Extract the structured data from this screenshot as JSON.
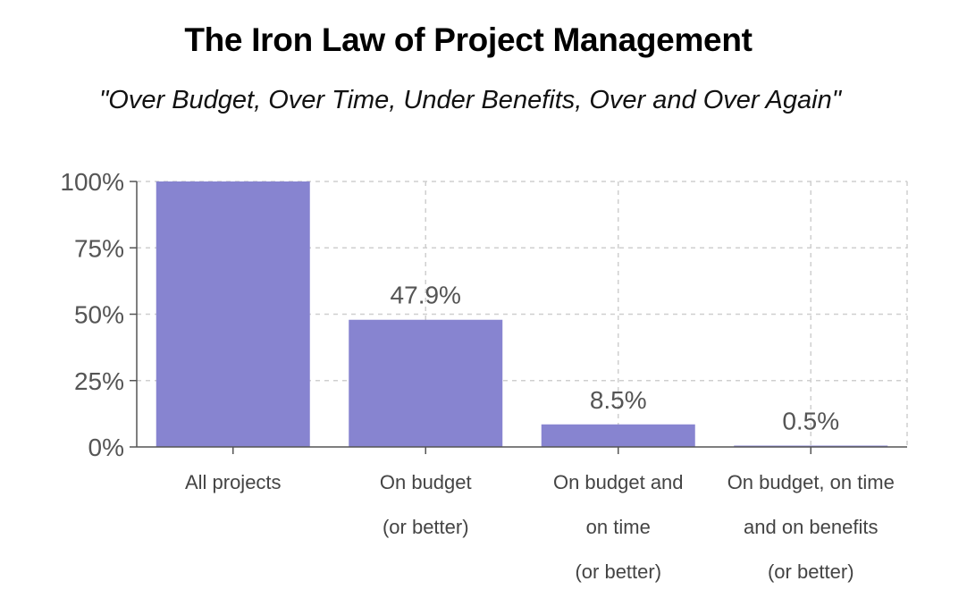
{
  "chart_data": {
    "type": "bar",
    "title": "The Iron Law of Project Management",
    "subtitle": "\"Over Budget, Over Time, Under Benefits, Over and Over Again\"",
    "categories": [
      [
        "All projects"
      ],
      [
        "On budget",
        "(or better)"
      ],
      [
        "On budget and",
        "on time",
        "(or better)"
      ],
      [
        "On budget, on time",
        "and on benefits",
        "(or better)"
      ]
    ],
    "values": [
      100,
      47.9,
      8.5,
      0.5
    ],
    "data_labels": [
      "",
      "47.9%",
      "8.5%",
      "0.5%"
    ],
    "ylim": [
      0,
      100
    ],
    "yticks": [
      0,
      25,
      50,
      75,
      100
    ],
    "ytick_labels": [
      "0%",
      "25%",
      "50%",
      "75%",
      "100%"
    ],
    "xlabel": "",
    "ylabel": "",
    "grid": true,
    "bar_color": "#8784d0",
    "grid_color": "#cfcfcf",
    "axis_color": "#555555"
  }
}
